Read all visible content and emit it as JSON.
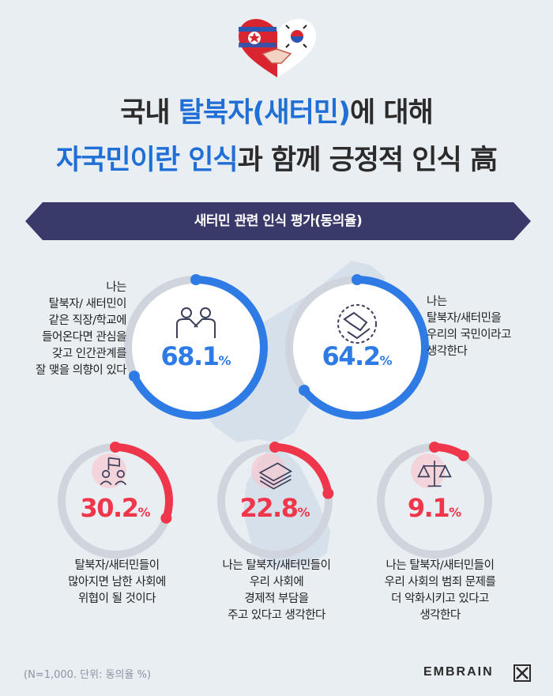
{
  "title": {
    "line1_pre": "국내 ",
    "line1_highlight": "탈북자(새터민)",
    "line1_post": "에 대해",
    "line2_highlight": "자국민이란 인식",
    "line2_post": "과 함께 긍정적 인식 高"
  },
  "banner": "새터민 관련 인식 평가(동의율)",
  "colors": {
    "positive": "#2f7be5",
    "negative": "#f0364b",
    "track": "#d0d4dc",
    "banner": "#3a3a6a",
    "title_highlight": "#1f6fd6"
  },
  "items": [
    {
      "value": "68.1",
      "unit": "%",
      "fraction": 0.681,
      "icon": "handshake-people-icon",
      "lines": [
        "나는",
        "탈북자/ 새터민이",
        "같은 직장/학교에",
        "들어온다면 관심을",
        "갖고 인간관계를",
        "잘 맺을 의향이 있다"
      ]
    },
    {
      "value": "64.2",
      "unit": "%",
      "fraction": 0.642,
      "icon": "handshake-icon",
      "lines": [
        "나는",
        "탈북자/새터민을",
        "우리의 국민이라고",
        "생각한다"
      ]
    },
    {
      "value": "30.2",
      "unit": "%",
      "fraction": 0.302,
      "icon": "protest-people-icon",
      "lines": [
        "탈북자/새터민들이",
        "많아지면 남한 사회에",
        "위협이 될 것이다"
      ]
    },
    {
      "value": "22.8",
      "unit": "%",
      "fraction": 0.228,
      "icon": "money-stack-icon",
      "lines": [
        "나는 탈북자/새터민들이",
        "우리 사회에",
        "경제적 부담을",
        "주고 있다고 생각한다"
      ]
    },
    {
      "value": "9.1",
      "unit": "%",
      "fraction": 0.091,
      "icon": "scales-of-justice-icon",
      "lines": [
        "나는 탈북자/새터민들이",
        "우리 사회의 범죄 문제를",
        "더 악화시키고 있다고",
        "생각한다"
      ]
    }
  ],
  "chart_data": {
    "type": "pie",
    "title": "새터민 관련 인식 평가(동의율)",
    "categories": [
      "나는 탈북자/ 새터민이 같은 직장/학교에 들어온다면 관심을 갖고 인간관계를 잘 맺을 의향이 있다",
      "나는 탈북자/새터민을 우리의 국민이라고 생각한다",
      "탈북자/새터민들이 많아지면 남한 사회에 위협이 될 것이다",
      "나는 탈북자/새터민들이 우리 사회에 경제적 부담을 주고 있다고 생각한다",
      "나는 탈북자/새터민들이 우리 사회의 범죄 문제를 더 악화시키고 있다고 생각한다"
    ],
    "values": [
      68.1,
      64.2,
      30.2,
      22.8,
      9.1
    ],
    "unit": "%"
  },
  "note": "(N=1,000. 단위: 동의율 %)",
  "brand": "EMBRAIN"
}
